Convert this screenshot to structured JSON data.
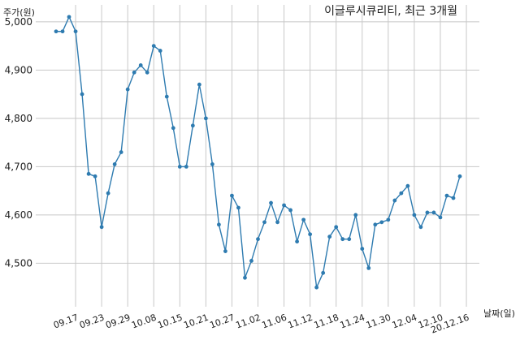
{
  "chart_data": {
    "type": "line",
    "title": "이글루시큐리티, 최근 3개월",
    "ylabel": "주가(원)",
    "xlabel": "날짜(일)",
    "ylim": [
      4410,
      5035
    ],
    "yticks": [
      4500,
      4600,
      4700,
      4800,
      4900,
      5000
    ],
    "ytick_labels": [
      "4,500",
      "4,600",
      "4,700",
      "4,800",
      "4,900",
      "5,000"
    ],
    "grid": true,
    "line_color": "#2e7bb0",
    "grid_color": "#c8c8c8",
    "xtick_labels": [
      "09.17",
      "09.23",
      "09.29",
      "10.08",
      "10.15",
      "10.21",
      "10.27",
      "11.02",
      "11.06",
      "11.12",
      "11.18",
      "11.24",
      "11.30",
      "12.04",
      "12.10",
      "20.12.16"
    ],
    "xtick_index": [
      3,
      7,
      11,
      15,
      19,
      23,
      27,
      31,
      35,
      39,
      43,
      47,
      51,
      55,
      59,
      63
    ],
    "series": [
      {
        "values": [
          4980,
          4980,
          5010,
          4980,
          4850,
          4685,
          4680,
          4575,
          4645,
          4705,
          4730,
          4860,
          4895,
          4910,
          4895,
          4950,
          4940,
          4845,
          4780,
          4700,
          4700,
          4785,
          4870,
          4800,
          4705,
          4580,
          4525,
          4640,
          4615,
          4470,
          4505,
          4550,
          4585,
          4625,
          4585,
          4620,
          4610,
          4545,
          4590,
          4560,
          4450,
          4480,
          4555,
          4575,
          4550,
          4550,
          4600,
          4530,
          4490,
          4580,
          4585,
          4590,
          4630,
          4645,
          4660,
          4600,
          4575,
          4605,
          4605,
          4595,
          4640,
          4635,
          4680
        ]
      }
    ]
  }
}
